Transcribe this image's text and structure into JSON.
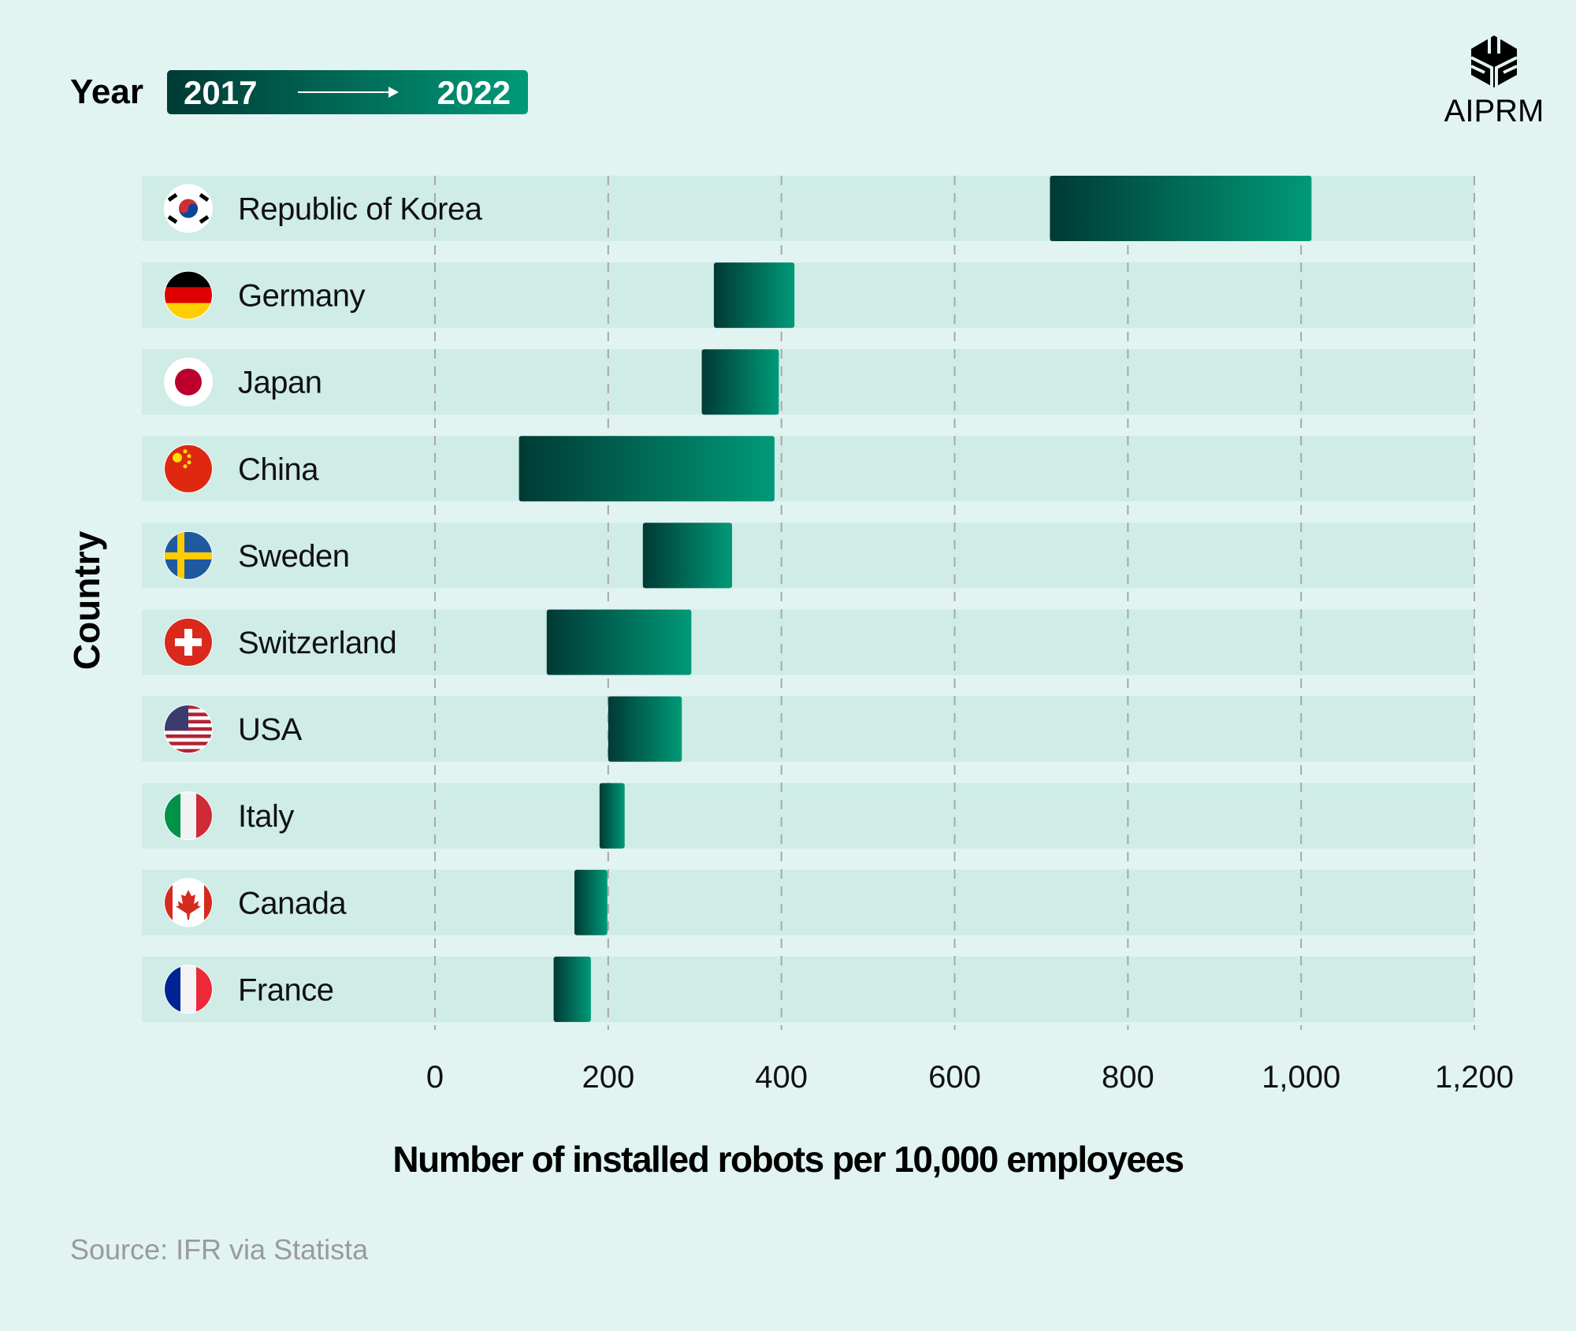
{
  "legend": {
    "label": "Year",
    "start": "2017",
    "end": "2022"
  },
  "logo": {
    "text": "AIPRM"
  },
  "source": "Source: IFR via Statista",
  "colors": {
    "background": "#e1f4f1",
    "row": "#cfece6",
    "bar_start": "#003a35",
    "bar_end": "#009a78"
  },
  "chart_data": {
    "type": "bar",
    "subtype": "dumbbell-range",
    "xlabel": "Number of installed robots per 10,000 employees",
    "ylabel": "Country",
    "xlim": [
      0,
      1200
    ],
    "xticks": [
      "0",
      "200",
      "400",
      "600",
      "800",
      "1,000",
      "1,200"
    ],
    "xtick_values": [
      0,
      200,
      400,
      600,
      800,
      1000,
      1200
    ],
    "grid": true,
    "categories": [
      "Republic of Korea",
      "Germany",
      "Japan",
      "China",
      "Sweden",
      "Switzerland",
      "USA",
      "Italy",
      "Canada",
      "France"
    ],
    "flags": [
      "korea-flag",
      "germany-flag",
      "japan-flag",
      "china-flag",
      "sweden-flag",
      "switzerland-flag",
      "usa-flag",
      "italy-flag",
      "canada-flag",
      "france-flag"
    ],
    "series": [
      {
        "name": "2017",
        "values": [
          710,
          322,
          308,
          97,
          240,
          129,
          200,
          190,
          161,
          137
        ]
      },
      {
        "name": "2022",
        "values": [
          1012,
          415,
          397,
          392,
          343,
          296,
          285,
          219,
          199,
          180
        ]
      }
    ]
  }
}
